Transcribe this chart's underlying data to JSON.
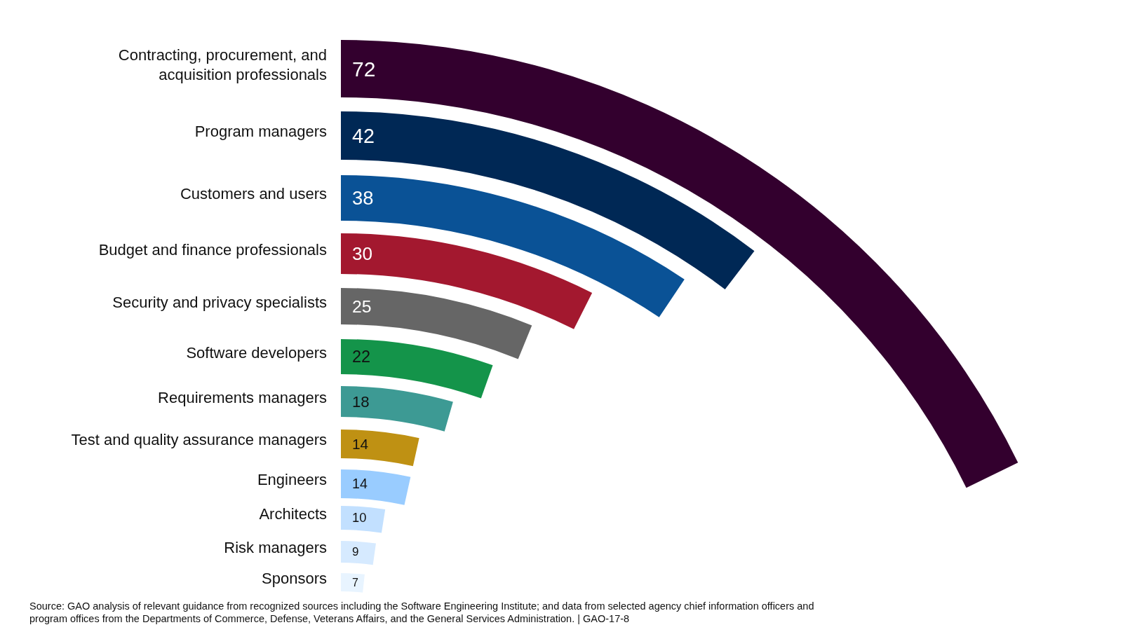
{
  "chart_data": {
    "type": "other",
    "categories": [
      "Contracting, procurement, and acquisition professionals",
      "Program managers",
      "Customers and users",
      "Budget and finance professionals",
      "Security and privacy specialists",
      "Software developers",
      "Requirements managers",
      "Test and quality assurance managers",
      "Engineers",
      "Architects",
      "Risk managers",
      "Sponsors"
    ],
    "values": [
      72,
      42,
      38,
      30,
      25,
      22,
      18,
      14,
      14,
      10,
      9,
      7
    ],
    "colors": [
      "#33002e",
      "#002855",
      "#0a5296",
      "#a3182f",
      "#666666",
      "#14944a",
      "#3d9a94",
      "#bf9113",
      "#99ccff",
      "#c2e0ff",
      "#d6eaff",
      "#e8f4ff"
    ],
    "data_labels": true,
    "annotations": [
      "Source: GAO analysis of relevant guidance from recognized sources including the Software Engineering Institute; and data from selected agency chief information officers and program offices from the Departments of Commerce, Defense, Veterans Affairs, and the General Services Administration.  |  GAO-17-8"
    ]
  }
}
